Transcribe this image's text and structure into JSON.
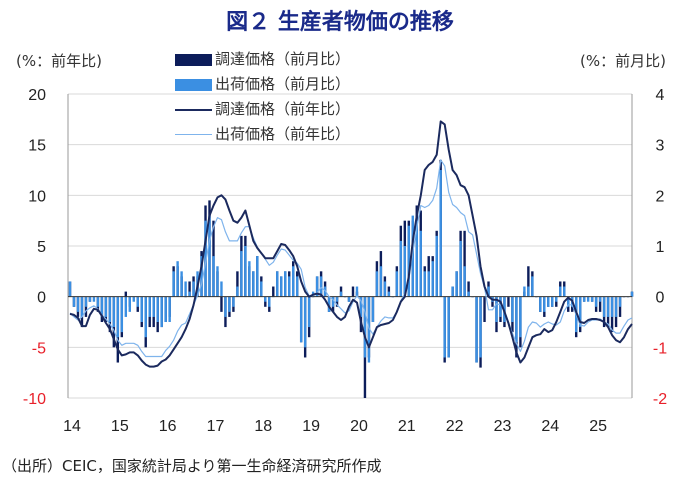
{
  "chart_data": {
    "type": "bar+line",
    "title": "図２ 生産者物価の推移",
    "ylabel_left": "(%：前年比)",
    "ylabel_right": "(%：前月比)",
    "ylim_left": [
      -10,
      20
    ],
    "yticks_left": [
      20,
      15,
      10,
      5,
      0,
      -5,
      -10
    ],
    "ylim_right": [
      -2,
      4
    ],
    "yticks_right": [
      4,
      3,
      2,
      1,
      0,
      -1,
      -2
    ],
    "negative_tick_color": "#e8202a",
    "xtick_labels": [
      "14",
      "15",
      "16",
      "17",
      "18",
      "19",
      "20",
      "21",
      "22",
      "23",
      "24",
      "25"
    ],
    "x_start": "2014-01",
    "x_end": "2025-10",
    "frequency": "monthly",
    "grid": true,
    "legend_placement": "top-left",
    "series": [
      {
        "name": "調達価格（前月比）",
        "type": "bar",
        "axis": "right",
        "color": "#0c1d5a",
        "values": [
          0.3,
          -0.2,
          -0.4,
          -0.6,
          -0.4,
          -0.1,
          0.0,
          -0.3,
          -0.5,
          -0.5,
          -0.7,
          -1.0,
          -1.3,
          -0.8,
          0.1,
          -0.2,
          0.0,
          -0.3,
          -0.6,
          -1.0,
          -0.6,
          -0.6,
          -0.7,
          -0.6,
          -0.5,
          -0.4,
          0.6,
          0.6,
          0.4,
          0.0,
          0.3,
          0.4,
          0.4,
          0.9,
          1.8,
          1.9,
          1.5,
          0.5,
          -0.3,
          -0.6,
          -0.4,
          -0.3,
          0.5,
          1.2,
          1.2,
          0.6,
          0.5,
          0.8,
          0.4,
          -0.2,
          -0.3,
          0.2,
          0.5,
          0.4,
          0.5,
          0.5,
          0.7,
          0.5,
          -0.9,
          -1.2,
          -0.8,
          0.0,
          0.4,
          0.5,
          0.3,
          -0.3,
          -0.3,
          -0.2,
          0.2,
          0.0,
          -0.1,
          0.2,
          0.1,
          -0.7,
          -2.0,
          -1.2,
          -0.5,
          0.7,
          0.9,
          0.4,
          0.2,
          0.0,
          0.6,
          1.4,
          1.5,
          1.5,
          1.5,
          1.8,
          1.7,
          0.6,
          0.8,
          0.8,
          1.3,
          2.7,
          -1.3,
          -1.2,
          0.2,
          0.5,
          1.3,
          1.3,
          0.3,
          0.0,
          -1.3,
          -1.4,
          -0.5,
          0.3,
          -0.2,
          -0.7,
          -0.5,
          -0.6,
          -0.2,
          -0.7,
          -1.2,
          -1.0,
          0.1,
          0.6,
          0.5,
          0.0,
          -0.3,
          -0.4,
          -0.2,
          -0.2,
          -0.2,
          0.3,
          0.3,
          -0.3,
          -0.3,
          -0.8,
          -0.7,
          -0.1,
          0.0,
          -0.1,
          -0.3,
          -0.3,
          -0.6,
          -0.6,
          -0.7,
          -0.6,
          -0.4,
          0.0,
          0.0,
          0.1
        ]
      },
      {
        "name": "出荷価格（前月比）",
        "type": "bar",
        "axis": "right",
        "color": "#3b8fe2",
        "values": [
          0.3,
          -0.2,
          -0.3,
          -0.4,
          -0.2,
          -0.1,
          -0.1,
          -0.2,
          -0.4,
          -0.4,
          -0.5,
          -0.6,
          -0.8,
          -0.7,
          -0.4,
          -0.3,
          -0.1,
          -0.2,
          -0.5,
          -0.8,
          -0.4,
          -0.4,
          -0.5,
          -0.6,
          -0.5,
          -0.5,
          0.5,
          0.7,
          0.5,
          0.3,
          0.1,
          0.3,
          0.5,
          0.8,
          1.5,
          1.6,
          0.8,
          0.6,
          0.3,
          -0.4,
          -0.3,
          -0.2,
          0.2,
          0.9,
          1.0,
          0.7,
          0.5,
          0.8,
          0.3,
          -0.1,
          -0.2,
          0.0,
          0.5,
          0.4,
          0.5,
          0.4,
          0.6,
          0.4,
          -0.9,
          -1.0,
          -0.6,
          0.1,
          0.4,
          0.4,
          0.2,
          -0.3,
          -0.2,
          -0.1,
          0.1,
          0.0,
          -0.1,
          0.0,
          0.2,
          -0.4,
          -1.2,
          -1.3,
          -0.5,
          0.5,
          0.6,
          0.3,
          0.1,
          0.0,
          0.5,
          1.1,
          1.0,
          1.4,
          1.6,
          1.5,
          1.3,
          0.5,
          0.5,
          0.7,
          1.2,
          2.5,
          -1.2,
          -1.2,
          0.2,
          0.5,
          1.1,
          0.6,
          0.1,
          0.0,
          -1.3,
          -1.2,
          0.0,
          0.2,
          -0.1,
          -0.5,
          -0.4,
          -0.5,
          0.0,
          -0.5,
          -0.9,
          -0.8,
          0.2,
          0.2,
          0.4,
          0.0,
          -0.3,
          -0.3,
          -0.2,
          -0.2,
          -0.1,
          0.2,
          0.2,
          -0.2,
          -0.2,
          -0.7,
          -0.6,
          -0.1,
          -0.1,
          -0.1,
          -0.2,
          -0.1,
          -0.4,
          -0.4,
          -0.4,
          -0.4,
          -0.2,
          0.0,
          0.0,
          0.1
        ]
      },
      {
        "name": "調達価格（前年比）",
        "type": "line",
        "axis": "left",
        "color": "#1b2a5e",
        "values": [
          -1.7,
          -1.8,
          -2.1,
          -2.9,
          -2.9,
          -1.8,
          -1.2,
          -1.3,
          -1.9,
          -2.6,
          -3.2,
          -4.2,
          -5.2,
          -5.8,
          -5.7,
          -5.5,
          -5.5,
          -5.8,
          -6.3,
          -6.7,
          -6.9,
          -6.9,
          -6.8,
          -6.4,
          -6.2,
          -5.8,
          -5.2,
          -4.6,
          -4.0,
          -3.2,
          -2.2,
          -0.8,
          1.0,
          3.0,
          5.5,
          8.0,
          9.0,
          9.8,
          10.0,
          9.6,
          8.5,
          7.5,
          7.3,
          7.8,
          8.5,
          7.0,
          5.5,
          4.8,
          4.3,
          3.8,
          3.8,
          3.8,
          4.5,
          5.2,
          5.1,
          4.6,
          4.0,
          3.0,
          1.5,
          0.5,
          0.0,
          0.2,
          0.3,
          0.2,
          -0.3,
          -1.0,
          -1.5,
          -2.0,
          -2.3,
          -2.0,
          -1.0,
          -0.3,
          -0.6,
          -2.5,
          -4.0,
          -5.0,
          -4.0,
          -3.0,
          -2.8,
          -2.7,
          -2.6,
          -2.3,
          -1.5,
          -0.5,
          0.0,
          2.0,
          5.5,
          8.0,
          10.0,
          12.5,
          13.0,
          13.3,
          14.0,
          17.3,
          17.0,
          14.5,
          12.5,
          12.0,
          11.0,
          10.8,
          10.0,
          8.0,
          6.0,
          3.0,
          1.0,
          0.0,
          -0.3,
          -0.3,
          -0.5,
          -1.5,
          -2.6,
          -4.0,
          -5.5,
          -6.5,
          -6.0,
          -5.0,
          -4.0,
          -3.8,
          -3.7,
          -3.2,
          -3.5,
          -3.3,
          -2.5,
          -1.5,
          -0.5,
          -0.1,
          -0.4,
          -1.5,
          -2.5,
          -2.6,
          -2.3,
          -2.2,
          -2.2,
          -2.3,
          -2.5,
          -3.0,
          -3.8,
          -4.3,
          -4.5,
          -4.0,
          -3.2,
          -2.7
        ]
      },
      {
        "name": "出荷価格（前年比）",
        "type": "line",
        "axis": "left",
        "color": "#7fb4ec",
        "values": [
          -1.6,
          -2.0,
          -2.3,
          -2.0,
          -1.4,
          -1.1,
          -0.9,
          -1.2,
          -1.8,
          -2.2,
          -2.7,
          -3.3,
          -4.3,
          -4.8,
          -4.6,
          -4.6,
          -4.6,
          -4.8,
          -5.4,
          -5.9,
          -5.9,
          -5.9,
          -5.9,
          -5.9,
          -5.3,
          -4.9,
          -4.3,
          -3.4,
          -2.8,
          -2.6,
          -1.7,
          -0.8,
          0.1,
          1.2,
          3.3,
          5.5,
          6.9,
          7.8,
          7.6,
          6.4,
          5.5,
          5.5,
          5.5,
          6.3,
          6.9,
          6.9,
          5.8,
          4.9,
          4.3,
          3.7,
          3.1,
          3.4,
          4.1,
          4.7,
          4.6,
          4.1,
          3.6,
          3.3,
          2.7,
          0.9,
          0.1,
          0.1,
          0.4,
          0.9,
          0.6,
          0.0,
          -0.3,
          -0.8,
          -1.2,
          -1.6,
          -1.4,
          -0.5,
          0.1,
          -0.4,
          -1.5,
          -3.1,
          -3.7,
          -3.0,
          -2.4,
          -2.0,
          -2.1,
          -2.1,
          -1.5,
          -0.4,
          0.3,
          1.7,
          4.4,
          6.8,
          9.0,
          8.8,
          9.0,
          9.5,
          10.7,
          13.5,
          12.9,
          10.3,
          9.1,
          8.8,
          8.3,
          8.0,
          6.4,
          6.1,
          4.2,
          2.3,
          0.9,
          -1.3,
          -1.3,
          -0.7,
          -0.8,
          -1.4,
          -2.5,
          -3.6,
          -4.6,
          -5.4,
          -4.4,
          -3.0,
          -2.5,
          -2.6,
          -3.0,
          -2.7,
          -2.5,
          -2.7,
          -2.8,
          -2.5,
          -1.4,
          -0.8,
          -0.8,
          -1.8,
          -2.8,
          -2.9,
          -2.5,
          -2.3,
          -2.3,
          -2.2,
          -2.5,
          -2.7,
          -3.3,
          -3.6,
          -3.6,
          -2.9,
          -2.3,
          -2.1
        ]
      }
    ],
    "source": "（出所）CEIC，国家統計局より第一生命経済研究所作成"
  }
}
